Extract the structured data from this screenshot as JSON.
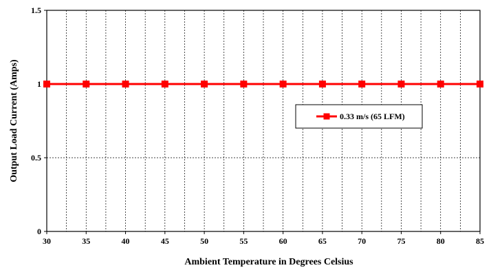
{
  "chart_data": {
    "type": "line",
    "title": "",
    "xlabel": "Ambient Temperature in Degrees Celsius",
    "ylabel": "Output Load Current (Amps)",
    "xlim": [
      30,
      85
    ],
    "ylim": [
      0,
      1.5
    ],
    "xticks": [
      "30",
      "35",
      "40",
      "45",
      "50",
      "55",
      "60",
      "65",
      "70",
      "75",
      "80",
      "85"
    ],
    "yticks": [
      "0",
      "0.5",
      "1",
      "1.5"
    ],
    "x": [
      30,
      35,
      40,
      45,
      50,
      55,
      60,
      65,
      70,
      75,
      80,
      85
    ],
    "series": [
      {
        "name": "0.33 m/s (65 LFM)",
        "values": [
          1,
          1,
          1,
          1,
          1,
          1,
          1,
          1,
          1,
          1,
          1,
          1
        ],
        "color": "#ff0000",
        "marker": "square"
      }
    ],
    "grid": true,
    "legend": "right-middle"
  },
  "colors": {
    "series": "#ff0000",
    "grid": "#000000",
    "axis": "#000000",
    "background": "#ffffff"
  }
}
